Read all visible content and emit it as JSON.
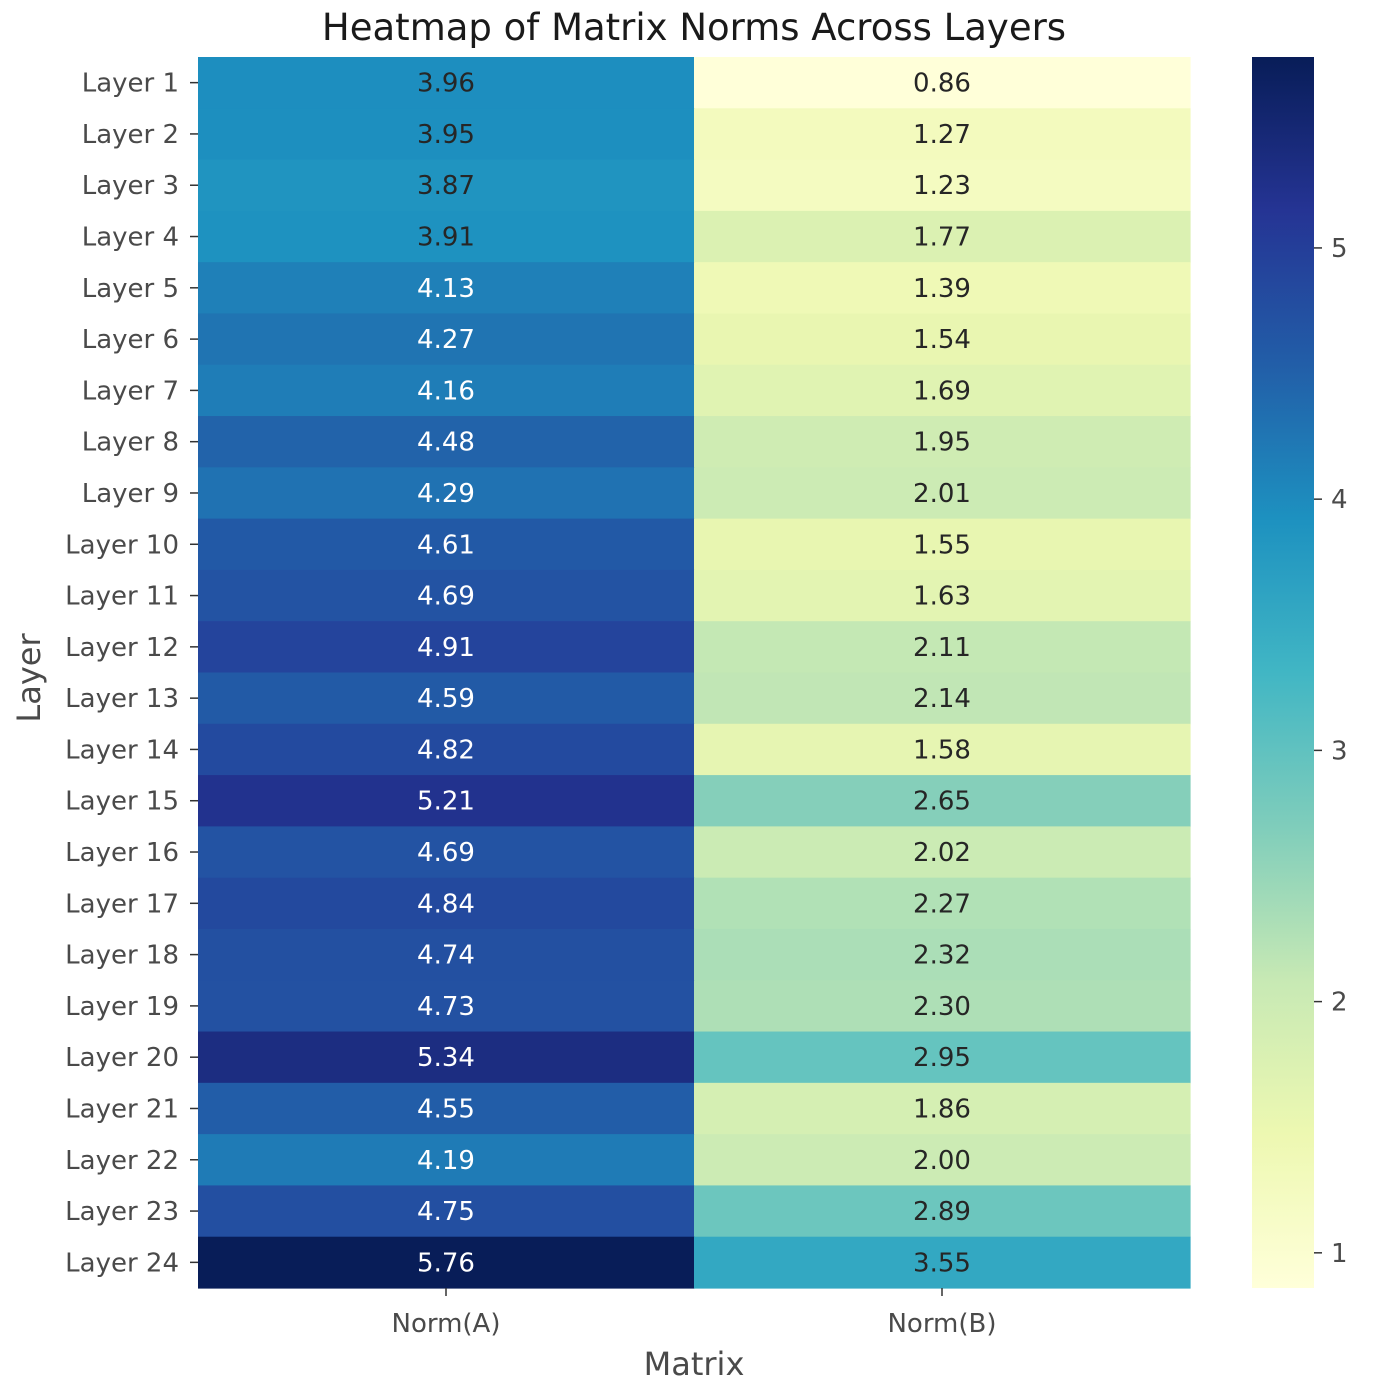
{
  "chart_data": {
    "type": "heatmap",
    "title": "Heatmap of Matrix Norms Across Layers",
    "xlabel": "Matrix",
    "ylabel": "Layer",
    "columns": [
      "Norm(A)",
      "Norm(B)"
    ],
    "rows": [
      "Layer 1",
      "Layer 2",
      "Layer 3",
      "Layer 4",
      "Layer 5",
      "Layer 6",
      "Layer 7",
      "Layer 8",
      "Layer 9",
      "Layer 10",
      "Layer 11",
      "Layer 12",
      "Layer 13",
      "Layer 14",
      "Layer 15",
      "Layer 16",
      "Layer 17",
      "Layer 18",
      "Layer 19",
      "Layer 20",
      "Layer 21",
      "Layer 22",
      "Layer 23",
      "Layer 24"
    ],
    "values": [
      [
        3.96,
        0.86
      ],
      [
        3.95,
        1.27
      ],
      [
        3.87,
        1.23
      ],
      [
        3.91,
        1.77
      ],
      [
        4.13,
        1.39
      ],
      [
        4.27,
        1.54
      ],
      [
        4.16,
        1.69
      ],
      [
        4.48,
        1.95
      ],
      [
        4.29,
        2.01
      ],
      [
        4.61,
        1.55
      ],
      [
        4.69,
        1.63
      ],
      [
        4.91,
        2.11
      ],
      [
        4.59,
        2.14
      ],
      [
        4.82,
        1.58
      ],
      [
        5.21,
        2.65
      ],
      [
        4.69,
        2.02
      ],
      [
        4.84,
        2.27
      ],
      [
        4.74,
        2.32
      ],
      [
        4.73,
        2.3
      ],
      [
        5.34,
        2.95
      ],
      [
        4.55,
        1.86
      ],
      [
        4.19,
        2.0
      ],
      [
        4.75,
        2.89
      ],
      [
        5.76,
        3.55
      ]
    ],
    "value_format": "2 decimals",
    "colormap": "YlGnBu",
    "color_range": [
      0.86,
      5.76
    ],
    "colorbar_ticks": [
      "1",
      "2",
      "3",
      "4",
      "5"
    ],
    "colorbar_tick_values": [
      1,
      2,
      3,
      4,
      5
    ],
    "annotation_colors": {
      "dark": "#262626",
      "light": "#ffffff"
    }
  }
}
